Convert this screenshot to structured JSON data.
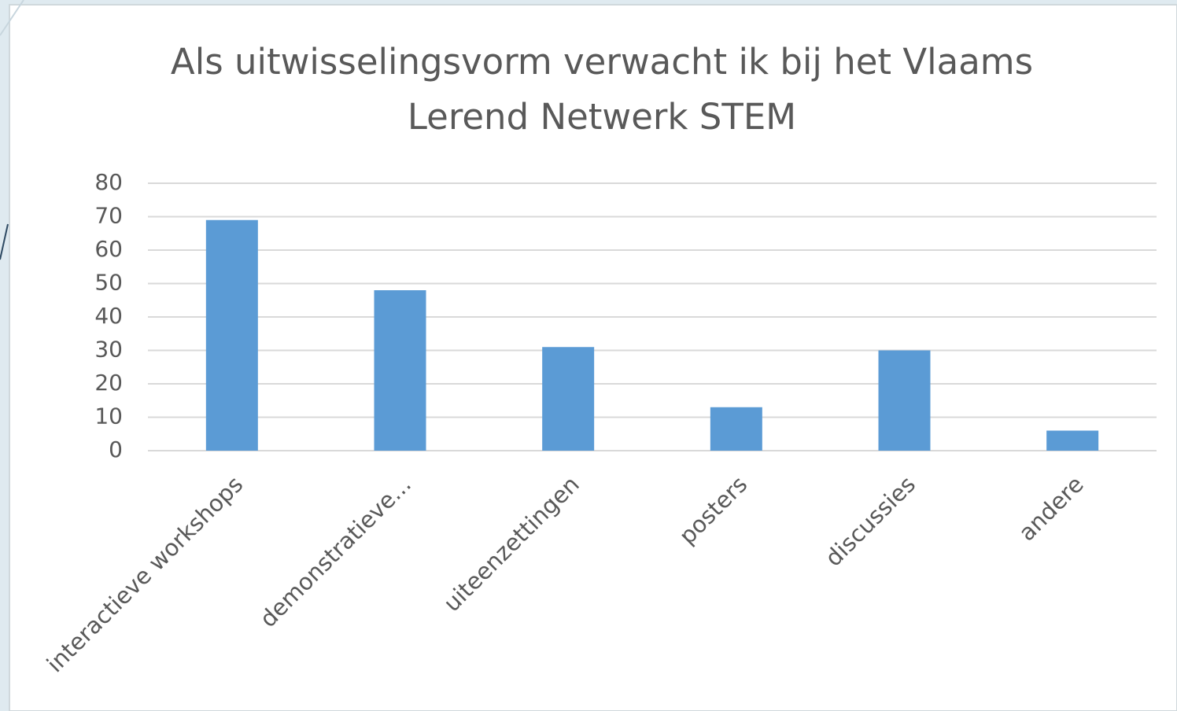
{
  "chart_data": {
    "type": "bar",
    "title": "Als uitwisselingsvorm verwacht ik bij het Vlaams Lerend Netwerk STEM",
    "categories": [
      "interactieve workshops",
      "demonstratieve...",
      "uiteenzettingen",
      "posters",
      "discussies",
      "andere"
    ],
    "values": [
      69,
      48,
      31,
      13,
      30,
      6
    ],
    "color": "#5b9bd5",
    "ylim": [
      0,
      80
    ],
    "yticks": [
      0,
      10,
      20,
      30,
      40,
      50,
      60,
      70,
      80
    ],
    "grid": true
  }
}
